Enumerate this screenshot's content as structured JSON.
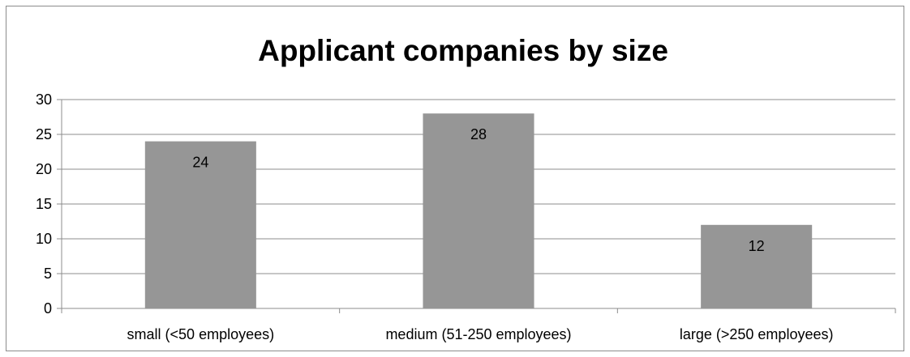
{
  "chart_data": {
    "type": "bar",
    "title": "Applicant companies by size",
    "categories": [
      "small (<50 employees)",
      "medium (51-250 employees)",
      "large (>250 employees)"
    ],
    "values": [
      24,
      28,
      12
    ],
    "data_labels": [
      "24",
      "28",
      "12"
    ],
    "ylim": [
      0,
      30
    ],
    "yticks": [
      0,
      5,
      10,
      15,
      20,
      25,
      30
    ],
    "grid": true,
    "legend": "none",
    "bar_color": "#969696",
    "grid_color": "#8c8c8c"
  }
}
